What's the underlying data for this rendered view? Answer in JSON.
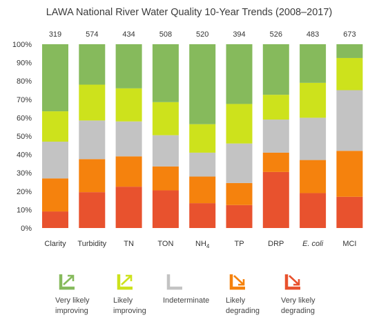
{
  "chart_data": {
    "type": "bar",
    "stacked": true,
    "title": "LAWA National River Water Quality 10-Year Trends (2008–2017)",
    "categories": [
      "Clarity",
      "Turbidity",
      "TN",
      "TON",
      "NH4",
      "TP",
      "DRP",
      "E. coli",
      "MCI"
    ],
    "category_display": [
      {
        "main": "Clarity",
        "sub": "",
        "italic": false
      },
      {
        "main": "Turbidity",
        "sub": "",
        "italic": false
      },
      {
        "main": "TN",
        "sub": "",
        "italic": false
      },
      {
        "main": "TON",
        "sub": "",
        "italic": false
      },
      {
        "main": "NH",
        "sub": "4",
        "italic": false
      },
      {
        "main": "TP",
        "sub": "",
        "italic": false
      },
      {
        "main": "DRP",
        "sub": "",
        "italic": false
      },
      {
        "main": "E. coli",
        "sub": "",
        "italic": true
      },
      {
        "main": "MCI",
        "sub": "",
        "italic": false
      }
    ],
    "counts": [
      "319",
      "574",
      "434",
      "508",
      "520",
      "394",
      "526",
      "483",
      "673"
    ],
    "yticks": [
      "0%",
      "10%",
      "20%",
      "30%",
      "40%",
      "50%",
      "60%",
      "70%",
      "80%",
      "90%",
      "100%"
    ],
    "ylim": [
      0,
      100
    ],
    "series": [
      {
        "name": "Very likely degrading",
        "color": "#e8522e",
        "values": [
          9,
          19.5,
          22.5,
          20.5,
          13.5,
          12.5,
          30.5,
          19,
          17
        ]
      },
      {
        "name": "Likely degrading",
        "color": "#f5820d",
        "values": [
          18,
          18,
          16.5,
          13,
          14.5,
          12,
          10.5,
          18,
          25
        ]
      },
      {
        "name": "Indeterminate",
        "color": "#c3c3c3",
        "values": [
          20,
          21,
          19,
          17,
          13,
          21.5,
          18,
          23,
          33
        ]
      },
      {
        "name": "Likely improving",
        "color": "#cde21c",
        "values": [
          16.5,
          19.5,
          18,
          18,
          15.5,
          21.5,
          13.5,
          19,
          17.5
        ]
      },
      {
        "name": "Very likely improving",
        "color": "#86ba5c",
        "values": [
          36.5,
          22,
          24,
          31.5,
          43.5,
          32.5,
          27.5,
          21,
          7.5
        ]
      }
    ],
    "legend": {
      "placement": "bottom",
      "items": [
        {
          "line1": "Very likely",
          "line2": "improving",
          "icon": "very-likely-improving-icon",
          "color": "#86ba5c"
        },
        {
          "line1": "Likely",
          "line2": "improving",
          "icon": "likely-improving-icon",
          "color": "#cde21c"
        },
        {
          "line1": "Indeterminate",
          "line2": "",
          "icon": "indeterminate-icon",
          "color": "#c3c3c3"
        },
        {
          "line1": "Likely",
          "line2": "degrading",
          "icon": "likely-degrading-icon",
          "color": "#f5820d"
        },
        {
          "line1": "Very likely",
          "line2": "degrading",
          "icon": "very-likely-degrading-icon",
          "color": "#e8522e"
        }
      ]
    },
    "grid": false
  }
}
